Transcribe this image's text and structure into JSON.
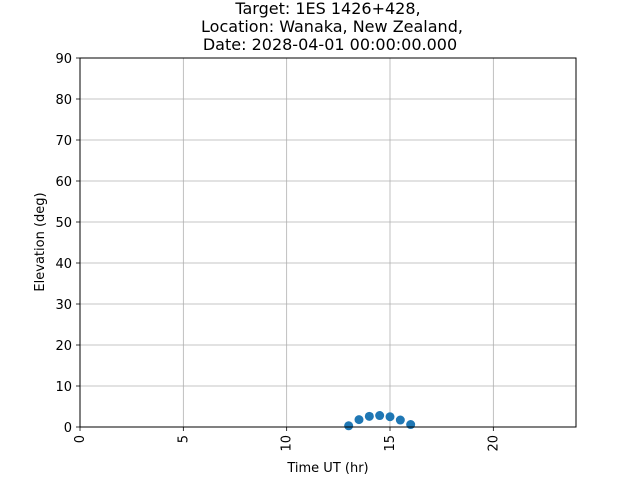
{
  "chart_data": {
    "type": "scatter",
    "title_lines": [
      "Target: 1ES 1426+428,",
      "Location: Wanaka, New Zealand,",
      "Date: 2028-04-01 00:00:00.000"
    ],
    "xlabel": "Time UT (hr)",
    "ylabel": "Elevation (deg)",
    "xlim": [
      0,
      24
    ],
    "ylim": [
      0,
      90
    ],
    "xticks": [
      0,
      5,
      10,
      15,
      20
    ],
    "yticks": [
      0,
      10,
      20,
      30,
      40,
      50,
      60,
      70,
      80,
      90
    ],
    "grid": true,
    "legend": "none",
    "series": [
      {
        "color": "#1f77b4",
        "x": [
          13.0,
          13.5,
          14.0,
          14.5,
          15.0,
          15.5,
          16.0
        ],
        "y": [
          0.3,
          1.8,
          2.6,
          2.8,
          2.5,
          1.7,
          0.6
        ]
      }
    ]
  }
}
